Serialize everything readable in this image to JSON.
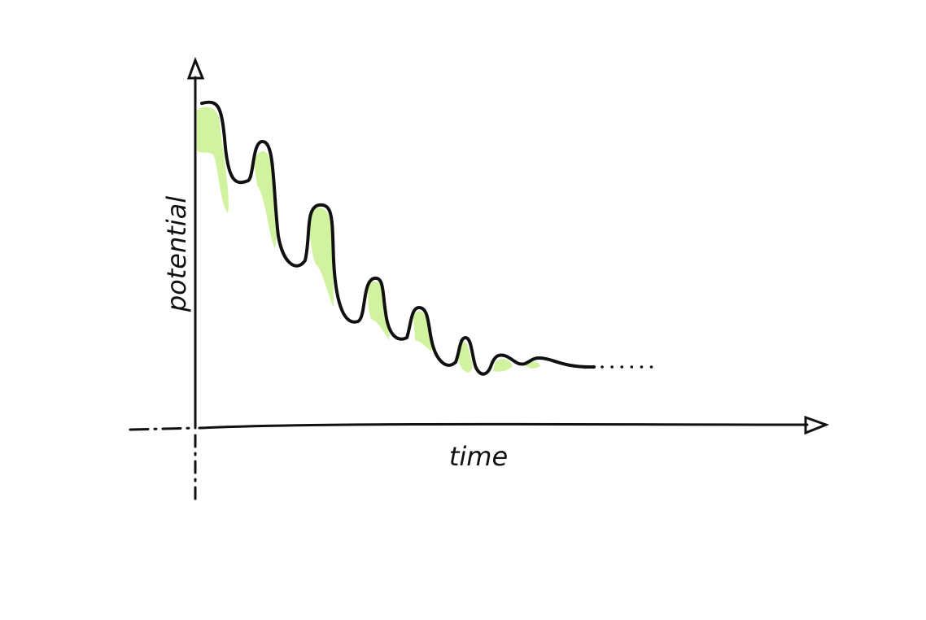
{
  "axes": {
    "y_label": "potential",
    "x_label": "time"
  }
}
